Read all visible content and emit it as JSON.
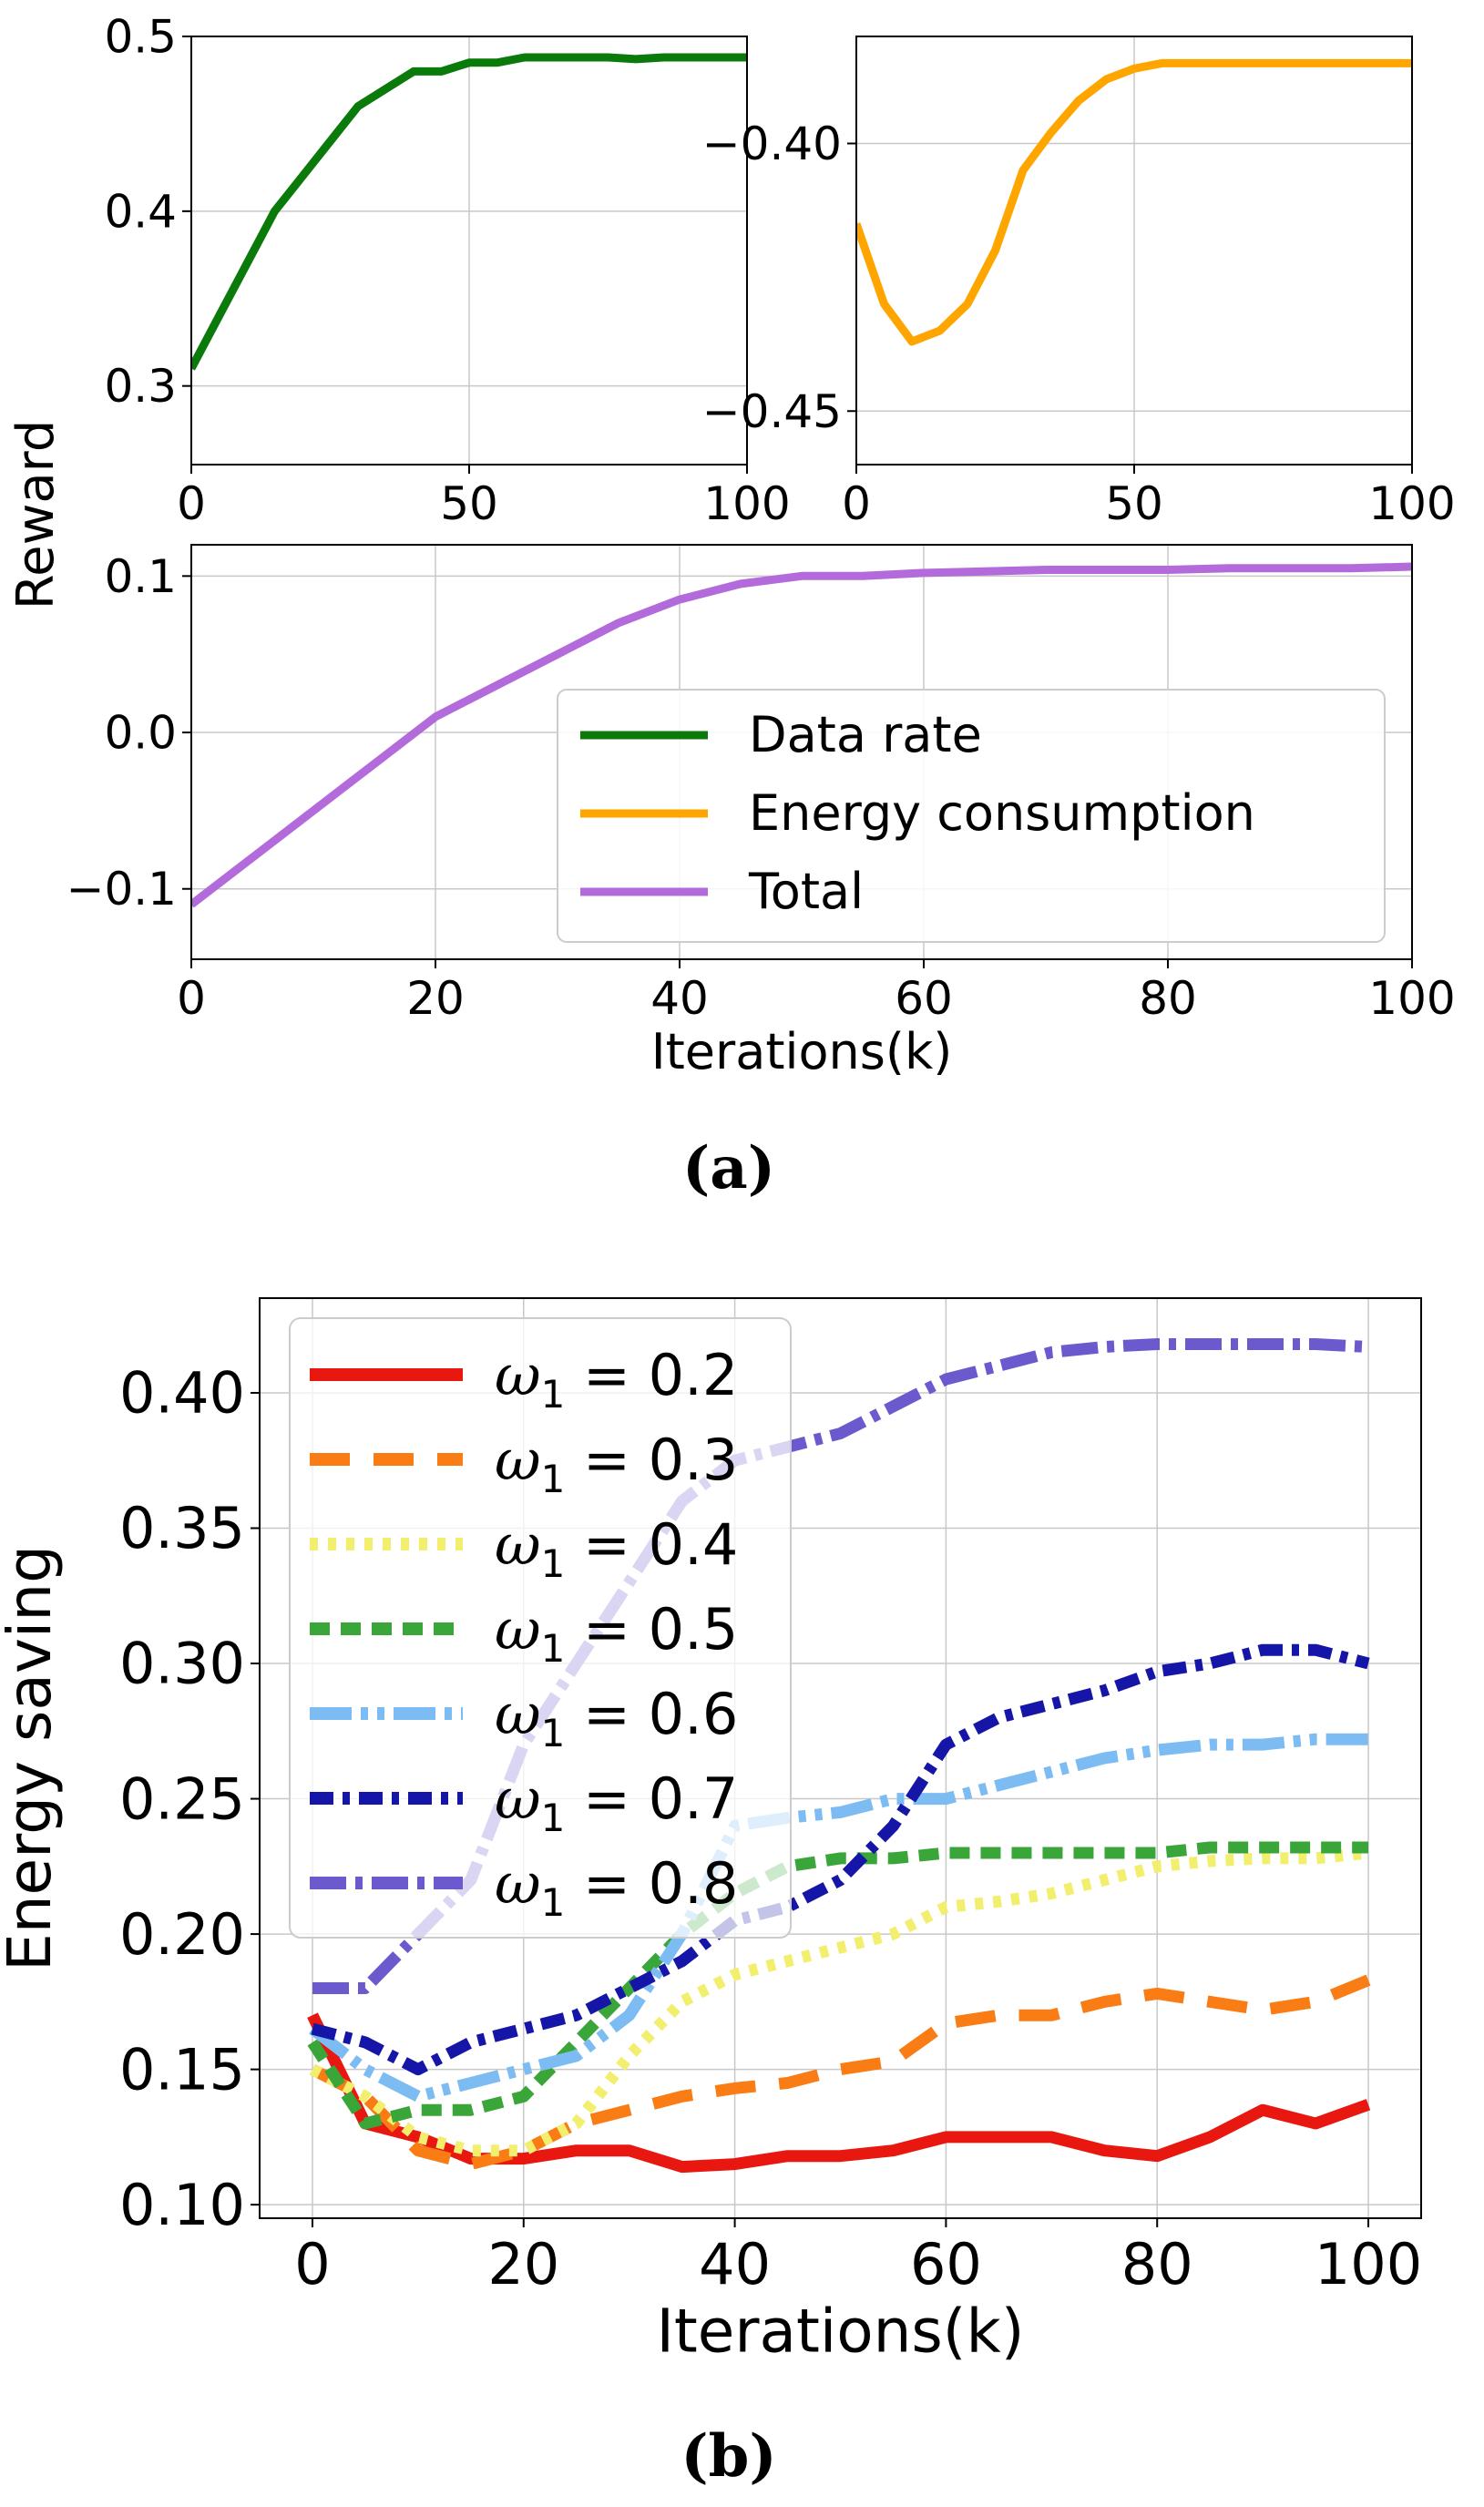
{
  "figure": {
    "caption_a": "(a)",
    "caption_b": "(b)",
    "reward_ylabel": "Reward",
    "xlabel_a": "Iterations(k)"
  },
  "chart_data": [
    {
      "id": "a1",
      "type": "line",
      "title": "",
      "xlabel": "",
      "ylabel": "Reward",
      "xlim": [
        0,
        100
      ],
      "ylim": [
        0.255,
        0.5
      ],
      "xticks": [
        0,
        50,
        100
      ],
      "xtick_labels": [
        "0",
        "50",
        "100"
      ],
      "yticks": [
        0.3,
        0.4,
        0.5
      ],
      "ytick_labels": [
        "0.3",
        "0.4",
        "0.5"
      ],
      "grid": true,
      "series": [
        {
          "name": "Data rate",
          "color": "#0a7a0a",
          "x": [
            0,
            5,
            10,
            15,
            20,
            25,
            30,
            35,
            40,
            45,
            50,
            55,
            60,
            65,
            70,
            75,
            80,
            85,
            90,
            95,
            100
          ],
          "y": [
            0.31,
            0.34,
            0.37,
            0.4,
            0.42,
            0.44,
            0.46,
            0.47,
            0.48,
            0.48,
            0.485,
            0.485,
            0.488,
            0.488,
            0.488,
            0.488,
            0.487,
            0.488,
            0.488,
            0.488,
            0.488
          ]
        }
      ]
    },
    {
      "id": "a2",
      "type": "line",
      "title": "",
      "xlabel": "",
      "ylabel": "",
      "xlim": [
        0,
        100
      ],
      "ylim": [
        -0.46,
        -0.38
      ],
      "xticks": [
        0,
        50,
        100
      ],
      "xtick_labels": [
        "0",
        "50",
        "100"
      ],
      "yticks": [
        -0.4,
        -0.45
      ],
      "ytick_labels": [
        "−0.40",
        "−0.45"
      ],
      "grid": true,
      "series": [
        {
          "name": "Energy consumption",
          "color": "#ffa500",
          "x": [
            0,
            5,
            10,
            15,
            20,
            25,
            30,
            35,
            40,
            45,
            50,
            55,
            60,
            65,
            70,
            75,
            80,
            85,
            90,
            95,
            100
          ],
          "y": [
            -0.415,
            -0.43,
            -0.437,
            -0.435,
            -0.43,
            -0.42,
            -0.405,
            -0.398,
            -0.392,
            -0.388,
            -0.386,
            -0.385,
            -0.385,
            -0.385,
            -0.385,
            -0.385,
            -0.385,
            -0.385,
            -0.385,
            -0.385,
            -0.385
          ]
        }
      ]
    },
    {
      "id": "a3",
      "type": "line",
      "title": "",
      "xlabel": "Iterations(k)",
      "ylabel": "",
      "xlim": [
        0,
        100
      ],
      "ylim": [
        -0.145,
        0.12
      ],
      "xticks": [
        0,
        20,
        40,
        60,
        80,
        100
      ],
      "xtick_labels": [
        "0",
        "20",
        "40",
        "60",
        "80",
        "100"
      ],
      "yticks": [
        -0.1,
        0.0,
        0.1
      ],
      "ytick_labels": [
        "−0.1",
        "0.0",
        "0.1"
      ],
      "grid": true,
      "legend": "bottom-right",
      "series": [
        {
          "name": "Total",
          "color": "#b36bdc",
          "x": [
            0,
            5,
            10,
            15,
            20,
            25,
            30,
            35,
            40,
            45,
            50,
            55,
            60,
            65,
            70,
            75,
            80,
            85,
            90,
            95,
            100
          ],
          "y": [
            -0.11,
            -0.08,
            -0.05,
            -0.02,
            0.01,
            0.03,
            0.05,
            0.07,
            0.085,
            0.095,
            0.1,
            0.1,
            0.102,
            0.103,
            0.104,
            0.104,
            0.104,
            0.105,
            0.105,
            0.105,
            0.106
          ]
        }
      ],
      "legend_entries": [
        {
          "name": "Data rate",
          "color": "#0a7a0a"
        },
        {
          "name": "Energy consumption",
          "color": "#ffa500"
        },
        {
          "name": "Total",
          "color": "#b36bdc"
        }
      ]
    },
    {
      "id": "b",
      "type": "line",
      "title": "",
      "xlabel": "Iterations(k)",
      "ylabel": "Energy saving",
      "xlim": [
        -5,
        105
      ],
      "ylim": [
        0.095,
        0.435
      ],
      "xticks": [
        0,
        20,
        40,
        60,
        80,
        100
      ],
      "xtick_labels": [
        "0",
        "20",
        "40",
        "60",
        "80",
        "100"
      ],
      "yticks": [
        0.1,
        0.15,
        0.2,
        0.25,
        0.3,
        0.35,
        0.4
      ],
      "ytick_labels": [
        "0.10",
        "0.15",
        "0.20",
        "0.25",
        "0.30",
        "0.35",
        "0.40"
      ],
      "grid": true,
      "legend": "top-left",
      "series": [
        {
          "name": "ω1 = 0.2",
          "label_prefix": "ω",
          "label_sub": "1",
          "label_suffix": " = 0.2",
          "color": "#e8170f",
          "dash": "none",
          "x": [
            0,
            5,
            10,
            15,
            20,
            25,
            30,
            35,
            40,
            45,
            50,
            55,
            60,
            65,
            70,
            75,
            80,
            85,
            90,
            95,
            100
          ],
          "y": [
            0.17,
            0.13,
            0.125,
            0.117,
            0.117,
            0.12,
            0.12,
            0.114,
            0.115,
            0.118,
            0.118,
            0.12,
            0.125,
            0.125,
            0.125,
            0.12,
            0.118,
            0.125,
            0.135,
            0.13,
            0.137
          ]
        },
        {
          "name": "ω1 = 0.3",
          "label_prefix": "ω",
          "label_sub": "1",
          "label_suffix": " = 0.3",
          "color": "#f97c14",
          "dash": "44 26",
          "x": [
            0,
            5,
            10,
            15,
            20,
            25,
            30,
            35,
            40,
            45,
            50,
            55,
            60,
            65,
            70,
            75,
            80,
            85,
            90,
            95,
            100
          ],
          "y": [
            0.15,
            0.14,
            0.12,
            0.115,
            0.12,
            0.13,
            0.135,
            0.14,
            0.143,
            0.145,
            0.15,
            0.153,
            0.167,
            0.17,
            0.17,
            0.175,
            0.178,
            0.175,
            0.172,
            0.175,
            0.183
          ]
        },
        {
          "name": "ω1 = 0.4",
          "label_prefix": "ω",
          "label_sub": "1",
          "label_suffix": " = 0.4",
          "color": "#f2ee6e",
          "dash": "9 11",
          "x": [
            0,
            5,
            10,
            15,
            20,
            25,
            30,
            35,
            40,
            45,
            50,
            55,
            60,
            65,
            70,
            75,
            80,
            85,
            90,
            95,
            100
          ],
          "y": [
            0.15,
            0.14,
            0.125,
            0.12,
            0.12,
            0.13,
            0.155,
            0.175,
            0.185,
            0.19,
            0.195,
            0.2,
            0.21,
            0.212,
            0.215,
            0.22,
            0.225,
            0.227,
            0.228,
            0.228,
            0.23
          ]
        },
        {
          "name": "ω1 = 0.5",
          "label_prefix": "ω",
          "label_sub": "1",
          "label_suffix": " = 0.5",
          "color": "#3aa63a",
          "dash": "22 12",
          "x": [
            0,
            5,
            10,
            15,
            20,
            25,
            30,
            35,
            40,
            45,
            50,
            55,
            60,
            65,
            70,
            75,
            80,
            85,
            90,
            95,
            100
          ],
          "y": [
            0.16,
            0.13,
            0.135,
            0.135,
            0.14,
            0.16,
            0.18,
            0.2,
            0.215,
            0.225,
            0.228,
            0.228,
            0.23,
            0.23,
            0.23,
            0.23,
            0.23,
            0.232,
            0.232,
            0.232,
            0.232
          ]
        },
        {
          "name": "ω1 = 0.6",
          "label_prefix": "ω",
          "label_sub": "1",
          "label_suffix": " = 0.6",
          "color": "#7dbcf2",
          "dash": "46 10 8 10 8 10",
          "x": [
            0,
            5,
            10,
            15,
            20,
            25,
            30,
            35,
            40,
            45,
            50,
            55,
            60,
            65,
            70,
            75,
            80,
            85,
            90,
            95,
            100
          ],
          "y": [
            0.165,
            0.15,
            0.14,
            0.145,
            0.15,
            0.155,
            0.17,
            0.2,
            0.24,
            0.243,
            0.245,
            0.25,
            0.25,
            0.255,
            0.26,
            0.265,
            0.268,
            0.27,
            0.27,
            0.272,
            0.272
          ]
        },
        {
          "name": "ω1 = 0.7",
          "label_prefix": "ω",
          "label_sub": "1",
          "label_suffix": " = 0.7",
          "color": "#1515a8",
          "dash": "26 10 8 10",
          "x": [
            0,
            5,
            10,
            15,
            20,
            25,
            30,
            35,
            40,
            45,
            50,
            55,
            60,
            65,
            70,
            75,
            80,
            85,
            90,
            95,
            100
          ],
          "y": [
            0.165,
            0.16,
            0.15,
            0.16,
            0.165,
            0.17,
            0.18,
            0.19,
            0.205,
            0.21,
            0.22,
            0.24,
            0.27,
            0.28,
            0.285,
            0.29,
            0.297,
            0.3,
            0.305,
            0.305,
            0.3
          ]
        },
        {
          "name": "ω1 = 0.8",
          "label_prefix": "ω",
          "label_sub": "1",
          "label_suffix": " = 0.8",
          "color": "#6a5acd",
          "dash": "40 10 8 10",
          "x": [
            0,
            5,
            10,
            15,
            20,
            25,
            30,
            35,
            40,
            45,
            50,
            55,
            60,
            65,
            70,
            75,
            80,
            85,
            90,
            95,
            100
          ],
          "y": [
            0.18,
            0.18,
            0.2,
            0.22,
            0.27,
            0.3,
            0.33,
            0.36,
            0.375,
            0.38,
            0.385,
            0.395,
            0.405,
            0.41,
            0.415,
            0.417,
            0.418,
            0.418,
            0.418,
            0.418,
            0.417
          ]
        }
      ]
    }
  ]
}
